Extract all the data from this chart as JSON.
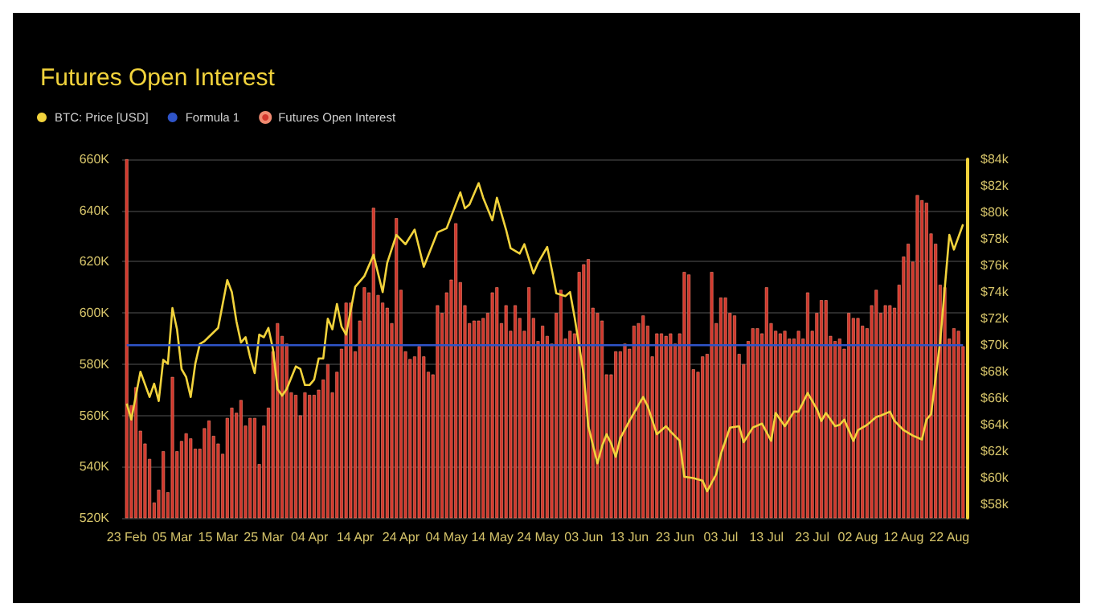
{
  "chart_data": {
    "type": "bar",
    "title": "Futures Open Interest",
    "x": [
      "--02-23",
      "--02-24",
      "--02-25",
      "--02-26",
      "--02-27",
      "--02-28",
      "--03-01",
      "--03-02",
      "--03-03",
      "--03-04",
      "--03-05",
      "--03-06",
      "--03-07",
      "--03-08",
      "--03-09",
      "--03-10",
      "--03-11",
      "--03-12",
      "--03-13",
      "--03-14",
      "--03-15",
      "--03-16",
      "--03-17",
      "--03-18",
      "--03-19",
      "--03-20",
      "--03-21",
      "--03-22",
      "--03-23",
      "--03-24",
      "--03-25",
      "--03-26",
      "--03-27",
      "--03-28",
      "--03-29",
      "--03-30",
      "--03-31",
      "--04-01",
      "--04-02",
      "--04-03",
      "--04-04",
      "--04-05",
      "--04-06",
      "--04-07",
      "--04-08",
      "--04-09",
      "--04-10",
      "--04-11",
      "--04-12",
      "--04-13",
      "--04-14",
      "--04-15",
      "--04-16",
      "--04-17",
      "--04-18",
      "--04-19",
      "--04-20",
      "--04-21",
      "--04-22",
      "--04-23",
      "--04-24",
      "--04-25",
      "--04-26",
      "--04-27",
      "--04-28",
      "--04-29",
      "--04-30",
      "--05-01",
      "--05-02",
      "--05-03",
      "--05-04",
      "--05-05",
      "--05-06",
      "--05-07",
      "--05-08",
      "--05-09",
      "--05-10",
      "--05-11",
      "--05-12",
      "--05-13",
      "--05-14",
      "--05-15",
      "--05-16",
      "--05-17",
      "--05-18",
      "--05-19",
      "--05-20",
      "--05-21",
      "--05-22",
      "--05-23",
      "--05-24",
      "--05-25",
      "--05-26",
      "--05-27",
      "--05-28",
      "--05-29",
      "--05-30",
      "--05-31",
      "--06-01",
      "--06-02",
      "--06-03",
      "--06-04",
      "--06-05",
      "--06-06",
      "--06-07",
      "--06-08",
      "--06-09",
      "--06-10",
      "--06-11",
      "--06-12",
      "--06-13",
      "--06-14",
      "--06-15",
      "--06-16",
      "--06-17",
      "--06-18",
      "--06-19",
      "--06-20",
      "--06-21",
      "--06-22",
      "--06-23",
      "--06-24",
      "--06-25",
      "--06-26",
      "--06-27",
      "--06-28",
      "--06-29",
      "--06-30",
      "--07-01",
      "--07-02",
      "--07-03",
      "--07-04",
      "--07-05",
      "--07-06",
      "--07-07",
      "--07-08",
      "--07-09",
      "--07-10",
      "--07-11",
      "--07-12",
      "--07-13",
      "--07-14",
      "--07-15",
      "--07-16",
      "--07-17",
      "--07-18",
      "--07-19",
      "--07-20",
      "--07-21",
      "--07-22",
      "--07-23",
      "--07-24",
      "--07-25",
      "--07-26",
      "--07-27",
      "--07-28",
      "--07-29",
      "--07-30",
      "--07-31",
      "--08-01",
      "--08-02",
      "--08-03",
      "--08-04",
      "--08-05",
      "--08-06",
      "--08-07",
      "--08-08",
      "--08-09",
      "--08-10",
      "--08-11",
      "--08-12",
      "--08-13",
      "--08-14",
      "--08-15",
      "--08-16",
      "--08-17",
      "--08-18",
      "--08-19",
      "--08-20",
      "--08-21",
      "--08-22",
      "--08-23",
      "--08-24",
      "--08-25"
    ],
    "series": [
      {
        "name": "BTC: Price [USD]",
        "type": "line",
        "axis": "y2",
        "color": "#f2d33c",
        "x": [
          "--02-23",
          "--02-24",
          "--02-26",
          "--02-28",
          "--03-01",
          "--03-02",
          "--03-03",
          "--03-04",
          "--03-05",
          "--03-06",
          "--03-07",
          "--03-08",
          "--03-09",
          "--03-10",
          "--03-11",
          "--03-12",
          "--03-15",
          "--03-17",
          "--03-18",
          "--03-19",
          "--03-20",
          "--03-21",
          "--03-22",
          "--03-23",
          "--03-24",
          "--03-25",
          "--03-26",
          "--03-27",
          "--03-28",
          "--03-29",
          "--03-30",
          "--04-01",
          "--04-02",
          "--04-03",
          "--04-04",
          "--04-05",
          "--04-06",
          "--04-07",
          "--04-08",
          "--04-09",
          "--04-10",
          "--04-11",
          "--04-12",
          "--04-14",
          "--04-16",
          "--04-18",
          "--04-19",
          "--04-20",
          "--04-21",
          "--04-23",
          "--04-25",
          "--04-27",
          "--04-29",
          "--05-02",
          "--05-04",
          "--05-07",
          "--05-08",
          "--05-09",
          "--05-11",
          "--05-12",
          "--05-14",
          "--05-15",
          "--05-17",
          "--05-18",
          "--05-20",
          "--05-21",
          "--05-23",
          "--05-24",
          "--05-26",
          "--05-27",
          "--05-28",
          "--05-30",
          "--05-31",
          "--06-01",
          "--06-03",
          "--06-04",
          "--06-06",
          "--06-07",
          "--06-08",
          "--06-09",
          "--06-10",
          "--06-11",
          "--06-13",
          "--06-16",
          "--06-17",
          "--06-19",
          "--06-21",
          "--06-22",
          "--06-24",
          "--06-25",
          "--06-27",
          "--06-29",
          "--06-30",
          "--07-02",
          "--07-03",
          "--07-05",
          "--07-07",
          "--07-08",
          "--07-10",
          "--07-12",
          "--07-14",
          "--07-15",
          "--07-17",
          "--07-19",
          "--07-20",
          "--07-22",
          "--07-24",
          "--07-25",
          "--07-26",
          "--07-28",
          "--07-29",
          "--07-30",
          "--08-01",
          "--08-02",
          "--08-04",
          "--08-06",
          "--08-07",
          "--08-09",
          "--08-10",
          "--08-12",
          "--08-14",
          "--08-16",
          "--08-17",
          "--08-18",
          "--08-20",
          "--08-22",
          "--08-23",
          "--08-25"
        ],
        "values": [
          65600,
          64400,
          68000,
          66100,
          67100,
          65800,
          68900,
          68600,
          72800,
          71200,
          68200,
          67600,
          66100,
          68600,
          70100,
          70300,
          71300,
          74900,
          74000,
          71800,
          70200,
          70600,
          69100,
          67900,
          70800,
          70600,
          71300,
          69700,
          66700,
          66200,
          66700,
          68400,
          68200,
          67000,
          67000,
          67400,
          69000,
          69000,
          72000,
          71200,
          73100,
          71400,
          70800,
          74400,
          75200,
          76800,
          75400,
          74000,
          76200,
          78300,
          77600,
          78700,
          75900,
          78500,
          78800,
          81500,
          80300,
          80600,
          82200,
          81100,
          79400,
          81100,
          78700,
          77300,
          76900,
          77600,
          75400,
          76200,
          77400,
          75700,
          73900,
          73700,
          74000,
          72100,
          67800,
          63900,
          61100,
          62400,
          63300,
          62600,
          61600,
          63000,
          64300,
          66100,
          65400,
          63300,
          63900,
          63500,
          62800,
          60100,
          60000,
          59800,
          59000,
          60300,
          61800,
          63800,
          63900,
          62700,
          63800,
          64100,
          62800,
          64900,
          63900,
          65000,
          65000,
          66400,
          65200,
          64300,
          64900,
          63900,
          64000,
          64400,
          62800,
          63600,
          64000,
          64600,
          64700,
          65000,
          64300,
          63600,
          63200,
          62900,
          64400,
          64800,
          70300,
          78300,
          77200,
          79100
        ]
      },
      {
        "name": "Formula 1",
        "type": "line",
        "axis": "y2",
        "color": "#2f54c8",
        "x": [
          "--02-23",
          "--08-25"
        ],
        "values": [
          70000,
          70000
        ]
      },
      {
        "name": "Futures Open Interest",
        "color": "#d2372d",
        "values": [
          660,
          564,
          571,
          554,
          549,
          543,
          526,
          531,
          546,
          530,
          575,
          546,
          550,
          553,
          551,
          547,
          547,
          555,
          558,
          552,
          549,
          545,
          559,
          563,
          561,
          566,
          556,
          559,
          559,
          541,
          556,
          563,
          585,
          596,
          591,
          588,
          569,
          568,
          560,
          569,
          568,
          568,
          570,
          574,
          580,
          569,
          577,
          586,
          604,
          604,
          585,
          597,
          610,
          608,
          641,
          607,
          604,
          602,
          596,
          637,
          609,
          585,
          582,
          583,
          587,
          583,
          577,
          576,
          603,
          600,
          608,
          613,
          635,
          612,
          603,
          596,
          597,
          597,
          598,
          600,
          608,
          610,
          596,
          603,
          593,
          603,
          598,
          593,
          610,
          598,
          589,
          595,
          591,
          588,
          600,
          609,
          590,
          593,
          592,
          616,
          619,
          621,
          602,
          600,
          597,
          576,
          576,
          585,
          585,
          588,
          586,
          595,
          596,
          599,
          595,
          583,
          592,
          592,
          591,
          592,
          588,
          592,
          616,
          615,
          578,
          577,
          583,
          584,
          616,
          596,
          606,
          606,
          600,
          599,
          584,
          580,
          589,
          594,
          594,
          592,
          610,
          596,
          593,
          592,
          593,
          590,
          590,
          593,
          590,
          608,
          593,
          600,
          605,
          605,
          591,
          589,
          590,
          586,
          600,
          598,
          598,
          595,
          594,
          603,
          609,
          600,
          603,
          603,
          602,
          611,
          622,
          627,
          620,
          646,
          644,
          643,
          631,
          627,
          611,
          610,
          590,
          594,
          593,
          587
        ]
      }
    ],
    "xlim": [
      "--02-22",
      "--08-26"
    ],
    "xticks": [
      {
        "value": "--02-23",
        "label": "23 Feb"
      },
      {
        "value": "--03-05",
        "label": "05 Mar"
      },
      {
        "value": "--03-15",
        "label": "15 Mar"
      },
      {
        "value": "--03-25",
        "label": "25 Mar"
      },
      {
        "value": "--04-04",
        "label": "04 Apr"
      },
      {
        "value": "--04-14",
        "label": "14 Apr"
      },
      {
        "value": "--04-24",
        "label": "24 Apr"
      },
      {
        "value": "--05-04",
        "label": "04 May"
      },
      {
        "value": "--05-14",
        "label": "14 May"
      },
      {
        "value": "--05-24",
        "label": "24 May"
      },
      {
        "value": "--06-03",
        "label": "03 Jun"
      },
      {
        "value": "--06-13",
        "label": "13 Jun"
      },
      {
        "value": "--06-23",
        "label": "23 Jun"
      },
      {
        "value": "--07-03",
        "label": "03 Jul"
      },
      {
        "value": "--07-13",
        "label": "13 Jul"
      },
      {
        "value": "--07-23",
        "label": "23 Jul"
      },
      {
        "value": "--08-02",
        "label": "02 Aug"
      },
      {
        "value": "--08-12",
        "label": "12 Aug"
      },
      {
        "value": "--08-22",
        "label": "22 Aug"
      }
    ],
    "ylim": [
      520,
      660
    ],
    "yticks": [
      {
        "value": 520,
        "label": "520K"
      },
      {
        "value": 540,
        "label": "540K"
      },
      {
        "value": 560,
        "label": "560K"
      },
      {
        "value": 580,
        "label": "580K"
      },
      {
        "value": 600,
        "label": "600K"
      },
      {
        "value": 620,
        "label": "620K"
      },
      {
        "value": 640,
        "label": "640K"
      },
      {
        "value": 660,
        "label": "660K"
      }
    ],
    "y2lim": [
      57000,
      84000
    ],
    "y2ticks": [
      {
        "value": 58000,
        "label": "$58k"
      },
      {
        "value": 60000,
        "label": "$60k"
      },
      {
        "value": 62000,
        "label": "$62k"
      },
      {
        "value": 64000,
        "label": "$64k"
      },
      {
        "value": 66000,
        "label": "$66k"
      },
      {
        "value": 68000,
        "label": "$68k"
      },
      {
        "value": 70000,
        "label": "$70k"
      },
      {
        "value": 72000,
        "label": "$72k"
      },
      {
        "value": 74000,
        "label": "$74k"
      },
      {
        "value": 76000,
        "label": "$76k"
      },
      {
        "value": 78000,
        "label": "$78k"
      },
      {
        "value": 80000,
        "label": "$80k"
      },
      {
        "value": 82000,
        "label": "$82k"
      },
      {
        "value": 84000,
        "label": "$84k"
      }
    ],
    "grid": "y",
    "legend": "top left"
  }
}
